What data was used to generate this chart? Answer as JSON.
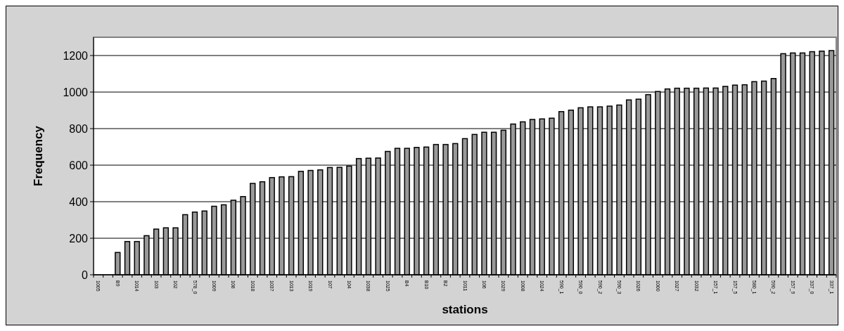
{
  "chart_data": {
    "type": "bar",
    "xlabel": "stations",
    "ylabel": "Frequency",
    "categories": [
      "1005",
      null,
      "B9",
      null,
      "1014",
      null,
      "103",
      null,
      "102",
      null,
      "578_0",
      null,
      "1009",
      null,
      "108",
      null,
      "1018",
      null,
      "1037",
      null,
      "1013",
      null,
      "1019",
      null,
      "107",
      null,
      "104",
      null,
      "1038",
      null,
      "1025",
      null,
      "B4",
      null,
      "B10",
      null,
      "B2",
      null,
      "1011",
      null,
      "106",
      null,
      "1029",
      null,
      "1008",
      null,
      "1024",
      null,
      "590_1",
      null,
      "590_0",
      null,
      "590_2",
      null,
      "590_3",
      null,
      "1026",
      null,
      "1000",
      null,
      "1027",
      null,
      "1032",
      null,
      "157_1",
      null,
      "157_5",
      null,
      "580_1",
      null,
      "590_2",
      null,
      "157_9",
      null,
      "337_0",
      null,
      "337_1"
    ],
    "values": [
      0,
      0,
      122,
      182,
      182,
      214,
      250,
      257,
      257,
      329,
      343,
      349,
      375,
      383,
      408,
      428,
      500,
      509,
      532,
      536,
      537,
      566,
      571,
      574,
      587,
      588,
      595,
      636,
      638,
      639,
      675,
      692,
      692,
      697,
      699,
      713,
      713,
      718,
      745,
      768,
      780,
      780,
      791,
      825,
      837,
      850,
      853,
      857,
      893,
      901,
      914,
      919,
      919,
      923,
      929,
      957,
      961,
      986,
      1003,
      1017,
      1021,
      1021,
      1021,
      1022,
      1022,
      1031,
      1038,
      1040,
      1057,
      1060,
      1074,
      1210,
      1214,
      1214,
      1221,
      1224,
      1227
    ],
    "color": "#999999",
    "ylim": [
      0,
      1300
    ],
    "yticks": [
      0,
      200,
      400,
      600,
      800,
      1000,
      1200
    ],
    "grid": "y"
  }
}
